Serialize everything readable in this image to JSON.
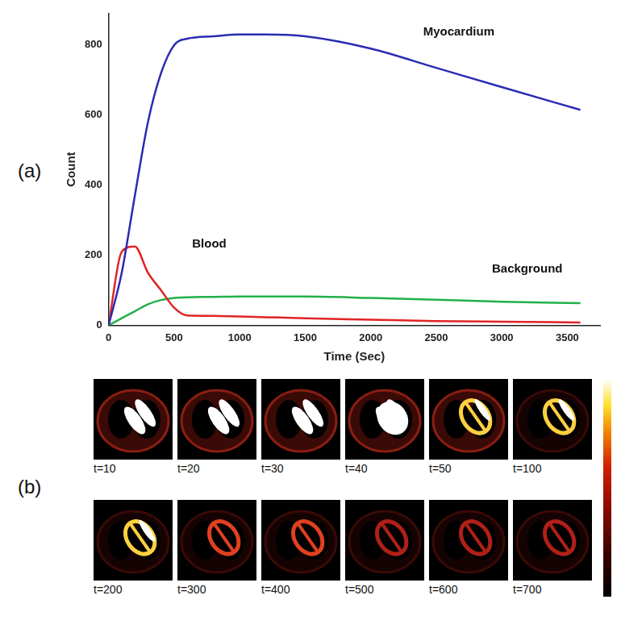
{
  "chart_data": {
    "type": "line",
    "x_label": "Time (Sec)",
    "y_label": "Count",
    "xlim": [
      0,
      3750
    ],
    "xticks": [
      0,
      500,
      1000,
      1500,
      2000,
      2500,
      3000,
      3500
    ],
    "ylim": [
      0,
      890
    ],
    "yticks": [
      0,
      200,
      400,
      600,
      800
    ],
    "grid": false,
    "x": [
      0,
      100,
      200,
      300,
      400,
      500,
      600,
      800,
      1000,
      1200,
      1500,
      2000,
      2500,
      3000,
      3600
    ],
    "series": [
      {
        "name": "Myocardium",
        "color": "#2b2bb3",
        "values": [
          0,
          150,
          370,
          580,
          720,
          800,
          818,
          825,
          830,
          830,
          825,
          790,
          735,
          680,
          615
        ]
      },
      {
        "name": "Blood",
        "color": "#e02424",
        "values": [
          0,
          210,
          225,
          150,
          100,
          50,
          28,
          27,
          25,
          23,
          20,
          16,
          12,
          10,
          8
        ]
      },
      {
        "name": "Background",
        "color": "#22b04a",
        "values": [
          0,
          20,
          40,
          60,
          72,
          78,
          80,
          81,
          82,
          82,
          82,
          78,
          73,
          67,
          63
        ]
      }
    ]
  },
  "panel_labels": [
    "(a)",
    "(b)"
  ],
  "frames": [
    "t=10",
    "t=20",
    "t=30",
    "t=40",
    "t=50",
    "t=100",
    "t=200",
    "t=300",
    "t=400",
    "t=500",
    "t=600",
    "t=700"
  ]
}
